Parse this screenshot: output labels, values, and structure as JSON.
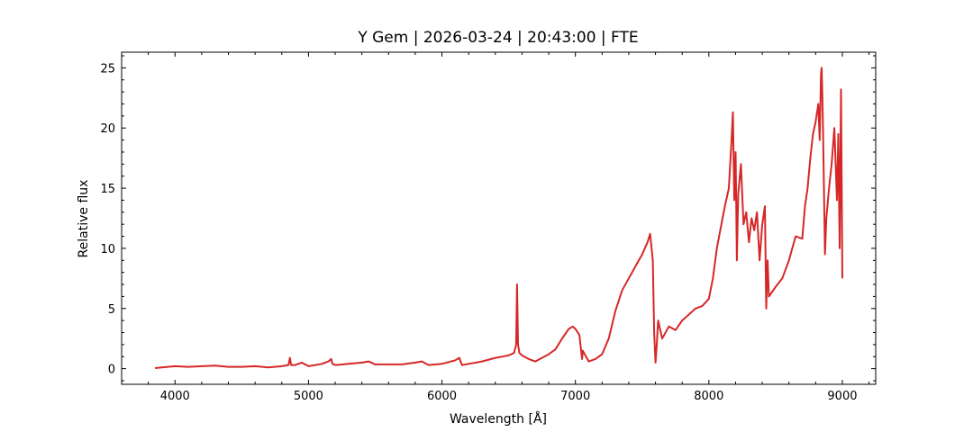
{
  "chart_data": {
    "type": "line",
    "title": "Y Gem | 2026-03-24 | 20:43:00 | FTE",
    "xlabel": "Wavelength [Å]",
    "ylabel": "Relative flux",
    "xlim": [
      3600,
      9250
    ],
    "ylim": [
      -1.3,
      26.3
    ],
    "x_ticks": [
      4000,
      5000,
      6000,
      7000,
      8000,
      9000
    ],
    "y_ticks": [
      0,
      5,
      10,
      15,
      20,
      25
    ],
    "grid": false,
    "ticks_direction": "in",
    "minor_ticks": true,
    "series": [
      {
        "color": "#d62728",
        "x": [
          3850,
          3900,
          4000,
          4100,
          4200,
          4300,
          4400,
          4500,
          4600,
          4700,
          4800,
          4850,
          4861,
          4870,
          4900,
          4950,
          5000,
          5100,
          5150,
          5170,
          5180,
          5200,
          5300,
          5400,
          5450,
          5500,
          5600,
          5700,
          5800,
          5850,
          5900,
          6000,
          6100,
          6130,
          6150,
          6200,
          6300,
          6400,
          6450,
          6500,
          6540,
          6556,
          6563,
          6570,
          6580,
          6600,
          6650,
          6700,
          6750,
          6800,
          6850,
          6900,
          6950,
          6980,
          7000,
          7030,
          7050,
          7055,
          7100,
          7150,
          7200,
          7250,
          7300,
          7350,
          7400,
          7450,
          7500,
          7540,
          7560,
          7580,
          7590,
          7600,
          7610,
          7620,
          7650,
          7700,
          7750,
          7800,
          7850,
          7900,
          7950,
          8000,
          8030,
          8060,
          8090,
          8120,
          8150,
          8170,
          8180,
          8190,
          8200,
          8210,
          8220,
          8240,
          8260,
          8280,
          8300,
          8320,
          8340,
          8360,
          8380,
          8400,
          8420,
          8430,
          8440,
          8450,
          8500,
          8550,
          8600,
          8650,
          8700,
          8720,
          8740,
          8760,
          8780,
          8800,
          8820,
          8830,
          8840,
          8845,
          8850,
          8855,
          8870,
          8880,
          8900,
          8920,
          8940,
          8960,
          8970,
          8980,
          8990,
          9000
        ],
        "y": [
          0.05,
          0.1,
          0.2,
          0.15,
          0.2,
          0.25,
          0.15,
          0.15,
          0.2,
          0.1,
          0.2,
          0.3,
          0.9,
          0.3,
          0.3,
          0.5,
          0.2,
          0.4,
          0.6,
          0.8,
          0.4,
          0.3,
          0.4,
          0.5,
          0.6,
          0.35,
          0.35,
          0.35,
          0.5,
          0.6,
          0.3,
          0.4,
          0.7,
          0.9,
          0.3,
          0.4,
          0.6,
          0.9,
          1.0,
          1.1,
          1.3,
          2.0,
          7.0,
          2.0,
          1.3,
          1.1,
          0.8,
          0.6,
          0.9,
          1.2,
          1.6,
          2.5,
          3.3,
          3.5,
          3.3,
          2.8,
          0.8,
          1.5,
          0.6,
          0.8,
          1.2,
          2.5,
          4.8,
          6.5,
          7.5,
          8.5,
          9.5,
          10.5,
          11.2,
          9.0,
          3.0,
          0.5,
          2.0,
          4.0,
          2.5,
          3.5,
          3.2,
          4.0,
          4.5,
          5.0,
          5.2,
          5.8,
          7.5,
          10.0,
          11.8,
          13.5,
          15.0,
          19.0,
          21.3,
          14.0,
          18.0,
          9.0,
          14.5,
          17.0,
          12.0,
          13.0,
          10.5,
          12.5,
          11.5,
          13.0,
          9.0,
          12.0,
          13.5,
          5.0,
          9.0,
          6.0,
          6.8,
          7.5,
          9.0,
          11.0,
          10.8,
          13.5,
          15.0,
          17.5,
          19.5,
          20.5,
          22.0,
          19.0,
          24.5,
          25.0,
          23.0,
          20.0,
          9.5,
          12.5,
          15.0,
          17.0,
          20.0,
          14.0,
          19.5,
          10.0,
          23.2,
          7.5
        ]
      }
    ]
  }
}
